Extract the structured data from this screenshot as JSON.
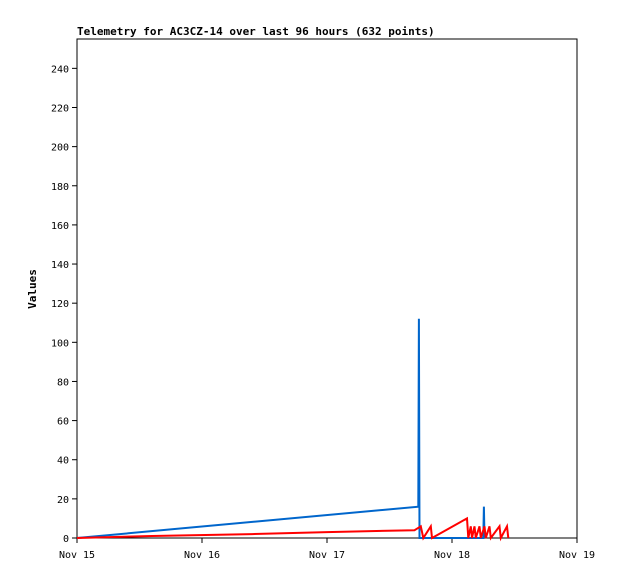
{
  "chart_data": {
    "type": "line",
    "title": "Telemetry for AC3CZ-14 over last 96 hours (632 points)",
    "xlabel": "",
    "ylabel": "Values",
    "x_ticks": [
      "Nov 15",
      "Nov 16",
      "Nov 17",
      "Nov 18",
      "Nov 19"
    ],
    "x_range_days": [
      0,
      4
    ],
    "ylim": [
      0,
      255
    ],
    "y_ticks": [
      0,
      20,
      40,
      60,
      80,
      100,
      120,
      140,
      160,
      180,
      200,
      220,
      240
    ],
    "grid": false,
    "legend": "none",
    "series": [
      {
        "color": "#0066cc",
        "points": [
          [
            0,
            0
          ],
          [
            2.73,
            16
          ],
          [
            2.735,
            112
          ],
          [
            2.74,
            0
          ],
          [
            3.25,
            0
          ],
          [
            3.255,
            16
          ],
          [
            3.26,
            0
          ]
        ]
      },
      {
        "color": "#ff0000",
        "points": [
          [
            0,
            0
          ],
          [
            0.6,
            1
          ],
          [
            1.4,
            2
          ],
          [
            2.0,
            3
          ],
          [
            2.7,
            4
          ],
          [
            2.75,
            6
          ],
          [
            2.77,
            0
          ],
          [
            2.83,
            6
          ],
          [
            2.84,
            0
          ],
          [
            3.12,
            10
          ],
          [
            3.13,
            0
          ],
          [
            3.15,
            6
          ],
          [
            3.16,
            0
          ],
          [
            3.18,
            6
          ],
          [
            3.19,
            0
          ],
          [
            3.22,
            6
          ],
          [
            3.23,
            0
          ],
          [
            3.26,
            6
          ],
          [
            3.27,
            0
          ],
          [
            3.3,
            6
          ],
          [
            3.31,
            0
          ],
          [
            3.38,
            6
          ],
          [
            3.39,
            0
          ],
          [
            3.44,
            6
          ],
          [
            3.45,
            0
          ]
        ]
      }
    ]
  }
}
